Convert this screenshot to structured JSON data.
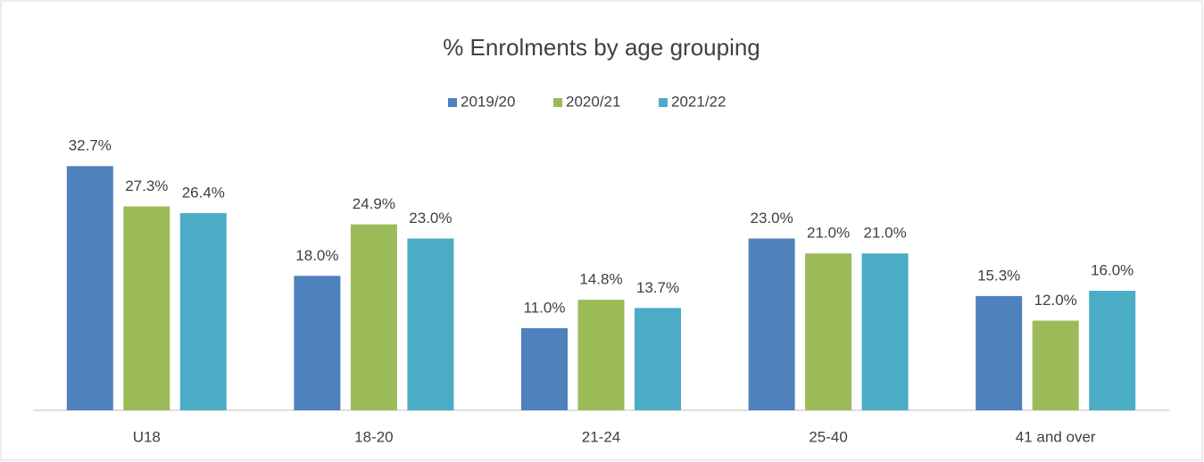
{
  "chart_data": {
    "type": "bar",
    "title": "% Enrolments by age grouping",
    "categories": [
      "U18",
      "18-20",
      "21-24",
      "25-40",
      "41 and over"
    ],
    "series": [
      {
        "name": "2019/20",
        "color": "#4f81bd",
        "values": [
          32.7,
          18.0,
          11.0,
          23.0,
          15.3
        ],
        "value_labels": [
          "32.7%",
          "18.0%",
          "11.0%",
          "23.0%",
          "15.3%"
        ]
      },
      {
        "name": "2020/21",
        "color": "#9bbb59",
        "values": [
          27.3,
          24.9,
          14.8,
          21.0,
          12.0
        ],
        "value_labels": [
          "27.3%",
          "24.9%",
          "14.8%",
          "21.0%",
          "12.0%"
        ]
      },
      {
        "name": "2021/22",
        "color": "#4bacc6",
        "values": [
          26.4,
          23.0,
          13.7,
          21.0,
          16.0
        ],
        "value_labels": [
          "26.4%",
          "23.0%",
          "13.7%",
          "21.0%",
          "16.0%"
        ]
      }
    ],
    "ylim": [
      0,
      35
    ],
    "legend": "top"
  }
}
